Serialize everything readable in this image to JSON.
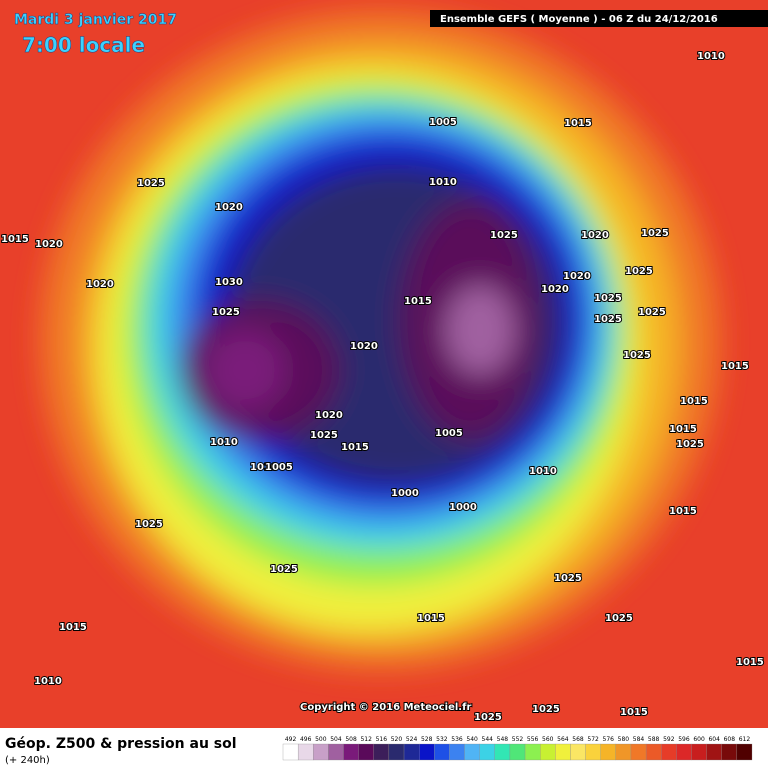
{
  "header": {
    "title": "Mardi 3 janvier 2017",
    "time": "7:00 locale",
    "run": "Ensemble GEFS  ( Moyenne )  -  06 Z du 24/12/2016"
  },
  "map": {
    "isobar_labels": [
      "1010",
      "1005",
      "1015",
      "1025",
      "1010",
      "1020",
      "1025",
      "1020",
      "1025",
      "1015",
      "1020",
      "1020",
      "1025",
      "1020",
      "1030",
      "1020",
      "1025",
      "1015",
      "1025",
      "1025",
      "1025",
      "1020",
      "1025",
      "1015",
      "1015",
      "1020",
      "1025",
      "1015",
      "1005",
      "1015",
      "1010",
      "1025",
      "1010",
      "1005",
      "1010",
      "1000",
      "1000",
      "1015",
      "1025",
      "1025",
      "1025",
      "1015",
      "1025",
      "1015",
      "1015",
      "1010",
      "1025",
      "1015",
      "1025"
    ],
    "copyright": "Copyright © 2016 Meteociel.fr"
  },
  "footer": {
    "title": "Géop. Z500 & pression au sol",
    "lead": "(+ 240h)"
  },
  "scale": {
    "values": [
      492,
      496,
      500,
      504,
      508,
      512,
      516,
      520,
      524,
      528,
      532,
      536,
      540,
      544,
      548,
      552,
      556,
      560,
      564,
      568,
      572,
      576,
      580,
      584,
      588,
      592,
      596,
      600,
      604,
      608,
      612
    ],
    "colors": [
      "#ffffff",
      "#e8d8e8",
      "#c8a0c8",
      "#a060a0",
      "#7a1a7a",
      "#5a0a5a",
      "#3c1e5a",
      "#2a2a6e",
      "#1e2896",
      "#0a14c8",
      "#1e50e6",
      "#3c82f0",
      "#50b4f5",
      "#3cd2e6",
      "#32e6b4",
      "#50e678",
      "#8cf050",
      "#c8f032",
      "#f0f03c",
      "#fae664",
      "#fad23c",
      "#f5b428",
      "#f09628",
      "#f07828",
      "#eb5a28",
      "#e63c28",
      "#dc2828",
      "#c81e1e",
      "#a01414",
      "#780a0a",
      "#500000"
    ]
  }
}
